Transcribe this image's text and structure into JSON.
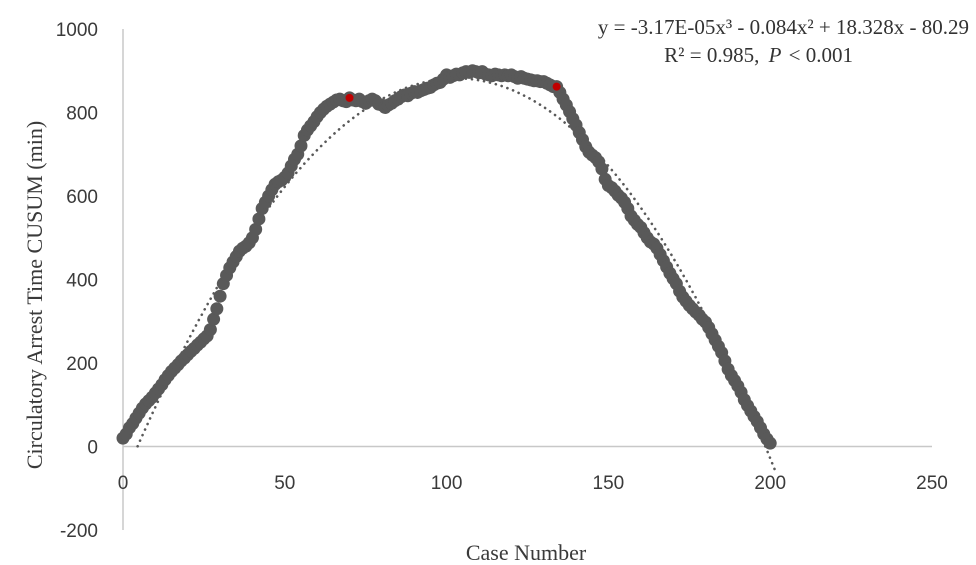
{
  "chart_data": {
    "type": "scatter",
    "xlabel": "Case Number",
    "ylabel": "Circulatory Arrest  Time CUSUM (min)",
    "xlim": [
      0,
      250
    ],
    "ylim": [
      -200,
      1000
    ],
    "x_ticks": [
      "0",
      "50",
      "100",
      "150",
      "200",
      "250"
    ],
    "y_ticks": [
      "-200",
      "0",
      "200",
      "400",
      "600",
      "800",
      "1000"
    ],
    "equation": "y = -3.17E-05x³ - 0.084x² + 18.328x - 80.29",
    "r2_text": "R² = 0.985,",
    "p_symbol": "P",
    "p_value_text": "< 0.001",
    "grid": false,
    "colors": {
      "points": "#595959",
      "highlight": "#c00000",
      "trend": "#595959",
      "axis": "#c8c8c8"
    },
    "trendline": {
      "type": "polynomial",
      "coefficients": [
        -3.17e-05,
        -0.084,
        18.328,
        -80.29
      ],
      "style": "dotted"
    },
    "highlighted_points": [
      {
        "x": 70,
        "y": 835
      },
      {
        "x": 134,
        "y": 862
      }
    ],
    "series": [
      {
        "points": [
          [
            0,
            20
          ],
          [
            1,
            30
          ],
          [
            2,
            45
          ],
          [
            3,
            55
          ],
          [
            4,
            68
          ],
          [
            5,
            80
          ],
          [
            6,
            92
          ],
          [
            7,
            102
          ],
          [
            8,
            110
          ],
          [
            9,
            118
          ],
          [
            10,
            128
          ],
          [
            11,
            138
          ],
          [
            12,
            148
          ],
          [
            13,
            160
          ],
          [
            14,
            170
          ],
          [
            15,
            180
          ],
          [
            16,
            188
          ],
          [
            17,
            196
          ],
          [
            18,
            205
          ],
          [
            19,
            212
          ],
          [
            20,
            220
          ],
          [
            21,
            228
          ],
          [
            22,
            235
          ],
          [
            23,
            243
          ],
          [
            24,
            250
          ],
          [
            25,
            258
          ],
          [
            26,
            265
          ],
          [
            27,
            280
          ],
          [
            28,
            305
          ],
          [
            29,
            330
          ],
          [
            30,
            360
          ],
          [
            31,
            390
          ],
          [
            32,
            410
          ],
          [
            33,
            428
          ],
          [
            34,
            442
          ],
          [
            35,
            455
          ],
          [
            36,
            468
          ],
          [
            37,
            475
          ],
          [
            38,
            480
          ],
          [
            39,
            488
          ],
          [
            40,
            500
          ],
          [
            41,
            520
          ],
          [
            42,
            545
          ],
          [
            43,
            570
          ],
          [
            44,
            585
          ],
          [
            45,
            600
          ],
          [
            46,
            615
          ],
          [
            47,
            628
          ],
          [
            48,
            634
          ],
          [
            49,
            638
          ],
          [
            50,
            645
          ],
          [
            51,
            655
          ],
          [
            52,
            672
          ],
          [
            53,
            688
          ],
          [
            54,
            700
          ],
          [
            55,
            720
          ],
          [
            56,
            745
          ],
          [
            57,
            758
          ],
          [
            58,
            768
          ],
          [
            59,
            778
          ],
          [
            60,
            790
          ],
          [
            61,
            800
          ],
          [
            62,
            808
          ],
          [
            63,
            815
          ],
          [
            64,
            820
          ],
          [
            65,
            825
          ],
          [
            66,
            830
          ],
          [
            67,
            832
          ],
          [
            68,
            828
          ],
          [
            69,
            826
          ],
          [
            70,
            835
          ],
          [
            71,
            830
          ],
          [
            72,
            828
          ],
          [
            73,
            832
          ],
          [
            74,
            826
          ],
          [
            75,
            822
          ],
          [
            76,
            828
          ],
          [
            77,
            832
          ],
          [
            78,
            828
          ],
          [
            79,
            820
          ],
          [
            80,
            818
          ],
          [
            81,
            812
          ],
          [
            82,
            818
          ],
          [
            83,
            822
          ],
          [
            84,
            828
          ],
          [
            85,
            832
          ],
          [
            86,
            838
          ],
          [
            87,
            842
          ],
          [
            88,
            840
          ],
          [
            89,
            846
          ],
          [
            90,
            850
          ],
          [
            91,
            848
          ],
          [
            92,
            852
          ],
          [
            93,
            855
          ],
          [
            94,
            858
          ],
          [
            95,
            860
          ],
          [
            96,
            866
          ],
          [
            97,
            870
          ],
          [
            98,
            872
          ],
          [
            99,
            880
          ],
          [
            100,
            890
          ],
          [
            101,
            884
          ],
          [
            102,
            888
          ],
          [
            103,
            892
          ],
          [
            104,
            890
          ],
          [
            105,
            895
          ],
          [
            106,
            898
          ],
          [
            107,
            896
          ],
          [
            108,
            900
          ],
          [
            109,
            898
          ],
          [
            110,
            895
          ],
          [
            111,
            898
          ],
          [
            112,
            892
          ],
          [
            113,
            890
          ],
          [
            114,
            888
          ],
          [
            115,
            892
          ],
          [
            116,
            890
          ],
          [
            117,
            888
          ],
          [
            118,
            890
          ],
          [
            119,
            888
          ],
          [
            120,
            890
          ],
          [
            121,
            886
          ],
          [
            122,
            882
          ],
          [
            123,
            886
          ],
          [
            124,
            882
          ],
          [
            125,
            880
          ],
          [
            126,
            878
          ],
          [
            127,
            876
          ],
          [
            128,
            876
          ],
          [
            129,
            874
          ],
          [
            130,
            874
          ],
          [
            131,
            870
          ],
          [
            132,
            866
          ],
          [
            133,
            862
          ],
          [
            134,
            862
          ],
          [
            135,
            848
          ],
          [
            136,
            832
          ],
          [
            137,
            818
          ],
          [
            138,
            802
          ],
          [
            139,
            785
          ],
          [
            140,
            770
          ],
          [
            141,
            752
          ],
          [
            142,
            735
          ],
          [
            143,
            718
          ],
          [
            144,
            705
          ],
          [
            145,
            698
          ],
          [
            146,
            692
          ],
          [
            147,
            682
          ],
          [
            148,
            665
          ],
          [
            149,
            640
          ],
          [
            150,
            625
          ],
          [
            151,
            620
          ],
          [
            152,
            612
          ],
          [
            153,
            602
          ],
          [
            154,
            595
          ],
          [
            155,
            585
          ],
          [
            156,
            570
          ],
          [
            157,
            552
          ],
          [
            158,
            542
          ],
          [
            159,
            532
          ],
          [
            160,
            525
          ],
          [
            161,
            512
          ],
          [
            162,
            500
          ],
          [
            163,
            490
          ],
          [
            164,
            485
          ],
          [
            165,
            475
          ],
          [
            166,
            460
          ],
          [
            167,
            445
          ],
          [
            168,
            430
          ],
          [
            169,
            415
          ],
          [
            170,
            402
          ],
          [
            171,
            390
          ],
          [
            172,
            372
          ],
          [
            173,
            358
          ],
          [
            174,
            348
          ],
          [
            175,
            338
          ],
          [
            176,
            330
          ],
          [
            177,
            322
          ],
          [
            178,
            315
          ],
          [
            179,
            305
          ],
          [
            180,
            298
          ],
          [
            181,
            285
          ],
          [
            182,
            270
          ],
          [
            183,
            255
          ],
          [
            184,
            240
          ],
          [
            185,
            225
          ],
          [
            186,
            205
          ],
          [
            187,
            185
          ],
          [
            188,
            170
          ],
          [
            189,
            158
          ],
          [
            190,
            145
          ],
          [
            191,
            130
          ],
          [
            192,
            112
          ],
          [
            193,
            98
          ],
          [
            194,
            85
          ],
          [
            195,
            72
          ],
          [
            196,
            60
          ],
          [
            197,
            45
          ],
          [
            198,
            30
          ],
          [
            199,
            18
          ],
          [
            200,
            8
          ]
        ]
      }
    ]
  }
}
